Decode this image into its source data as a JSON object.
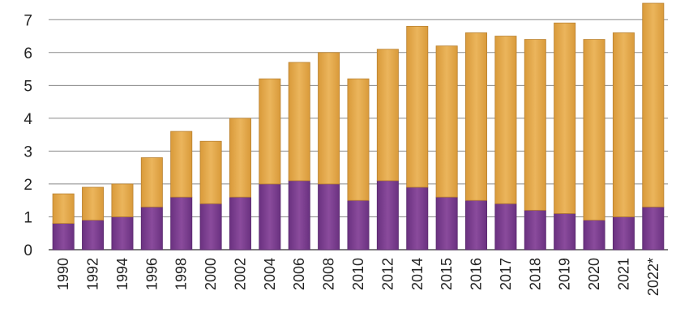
{
  "chart_data": {
    "type": "bar",
    "stacked": true,
    "title": "",
    "xlabel": "",
    "ylabel": "",
    "ylim": [
      0,
      7.5
    ],
    "yticks": [
      0,
      1,
      2,
      3,
      4,
      5,
      6,
      7
    ],
    "grid": "horizontal",
    "legend": "none",
    "categories": [
      "1990",
      "1992",
      "1994",
      "1996",
      "1998",
      "2000",
      "2002",
      "2004",
      "2006",
      "2008",
      "2010",
      "2012",
      "2014",
      "2015",
      "2016",
      "2017",
      "2018",
      "2019",
      "2020",
      "2021",
      "2022*"
    ],
    "series": [
      {
        "color": "#7b3f8f",
        "values": [
          0.8,
          0.9,
          1.0,
          1.3,
          1.6,
          1.4,
          1.6,
          2.0,
          2.1,
          2.0,
          1.5,
          2.1,
          1.9,
          1.6,
          1.5,
          1.4,
          1.2,
          1.1,
          0.9,
          1.0,
          1.3
        ]
      },
      {
        "color": "#e3a84a",
        "values": [
          0.9,
          1.0,
          1.0,
          1.5,
          2.0,
          1.9,
          2.4,
          3.2,
          3.6,
          4.0,
          3.7,
          4.0,
          4.9,
          4.6,
          5.1,
          5.1,
          5.2,
          5.8,
          5.5,
          5.6,
          6.2
        ]
      }
    ]
  }
}
